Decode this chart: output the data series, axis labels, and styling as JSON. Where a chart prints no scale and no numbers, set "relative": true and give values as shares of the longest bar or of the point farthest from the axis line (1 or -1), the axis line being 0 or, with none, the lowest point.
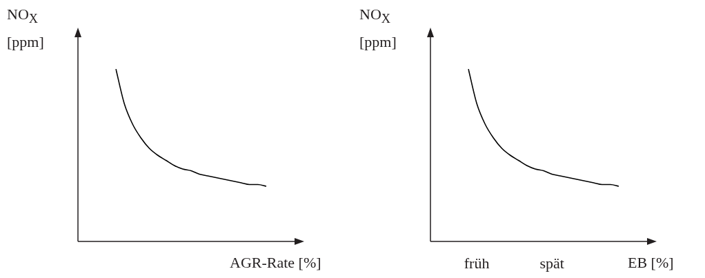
{
  "chart_data": [
    {
      "type": "line",
      "relative": true,
      "tick_labels": false,
      "xlabel": "AGR-Rate [%]",
      "ylabel": "NO$_{X}$ [ppm]",
      "categories": [
        null,
        null,
        null,
        null,
        null,
        null,
        null,
        null,
        null,
        null,
        null,
        null,
        null,
        null,
        null,
        null,
        null,
        null,
        null
      ],
      "values": [
        1,
        0.8,
        0.68,
        0.6,
        0.54,
        0.5,
        0.47,
        0.44,
        0.42,
        0.41,
        0.39,
        0.38,
        0.37,
        0.36,
        0.35,
        0.34,
        0.33,
        0.33,
        0.32
      ],
      "color": "#000000"
    },
    {
      "type": "line",
      "relative": true,
      "tick_labels": "x",
      "xlabel": "EB [%]",
      "ylabel": "NO$_{X}$ [ppm]",
      "categories": [
        null,
        "früh",
        null,
        null,
        null,
        null,
        null,
        null,
        null,
        null,
        "spät",
        null,
        null,
        null,
        null,
        null,
        null,
        null,
        null
      ],
      "values": [
        1,
        0.8,
        0.68,
        0.6,
        0.54,
        0.5,
        0.47,
        0.44,
        0.42,
        0.41,
        0.39,
        0.38,
        0.37,
        0.36,
        0.35,
        0.34,
        0.33,
        0.33,
        0.32
      ],
      "color": "#000000"
    }
  ]
}
